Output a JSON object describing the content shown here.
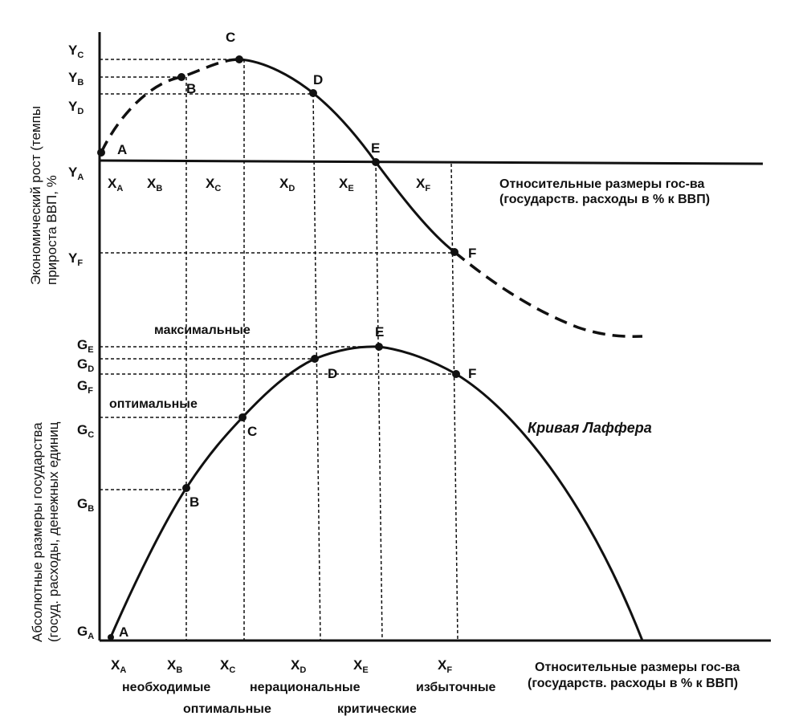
{
  "top_chart": {
    "y_axis_title": [
      "Экономический рост (темпы",
      "прироста ВВП, %"
    ],
    "x_axis_title": [
      "Относительные размеры гос-ва",
      "(государств. расходы в % к ВВП)"
    ],
    "y_ticks": [
      {
        "main": "Y",
        "sub": "C"
      },
      {
        "main": "Y",
        "sub": "B"
      },
      {
        "main": "Y",
        "sub": "D"
      },
      {
        "main": "Y",
        "sub": "A"
      },
      {
        "main": "Y",
        "sub": "F"
      }
    ],
    "x_ticks": [
      {
        "main": "X",
        "sub": "A"
      },
      {
        "main": "X",
        "sub": "B"
      },
      {
        "main": "X",
        "sub": "C"
      },
      {
        "main": "X",
        "sub": "D"
      },
      {
        "main": "X",
        "sub": "E"
      },
      {
        "main": "X",
        "sub": "F"
      }
    ],
    "points": [
      "A",
      "B",
      "C",
      "D",
      "E",
      "F"
    ]
  },
  "bottom_chart": {
    "y_axis_title": [
      "Абсолютные размеры государства",
      "(госуд. расходы, денежных единиц"
    ],
    "x_axis_title": [
      "Относительные размеры гос-ва",
      "(государств. расходы в % к ВВП)"
    ],
    "y_ticks": [
      {
        "main": "G",
        "sub": "E"
      },
      {
        "main": "G",
        "sub": "D"
      },
      {
        "main": "G",
        "sub": "F"
      },
      {
        "main": "G",
        "sub": "C"
      },
      {
        "main": "G",
        "sub": "B"
      },
      {
        "main": "G",
        "sub": "A"
      }
    ],
    "x_ticks": [
      {
        "main": "X",
        "sub": "A"
      },
      {
        "main": "X",
        "sub": "B"
      },
      {
        "main": "X",
        "sub": "C"
      },
      {
        "main": "X",
        "sub": "D"
      },
      {
        "main": "X",
        "sub": "E"
      },
      {
        "main": "X",
        "sub": "F"
      }
    ],
    "points": [
      "A",
      "B",
      "C",
      "D",
      "E",
      "F"
    ],
    "curve_label": "Кривая Лаффера",
    "annotations": {
      "maximal": "максимальные",
      "optimal": "оптимальные"
    },
    "zone_labels": {
      "necessary": "необходимые",
      "irrational": "нерациональные",
      "excessive": "избыточные",
      "optimal": "оптимальные",
      "critical": "критические"
    }
  }
}
